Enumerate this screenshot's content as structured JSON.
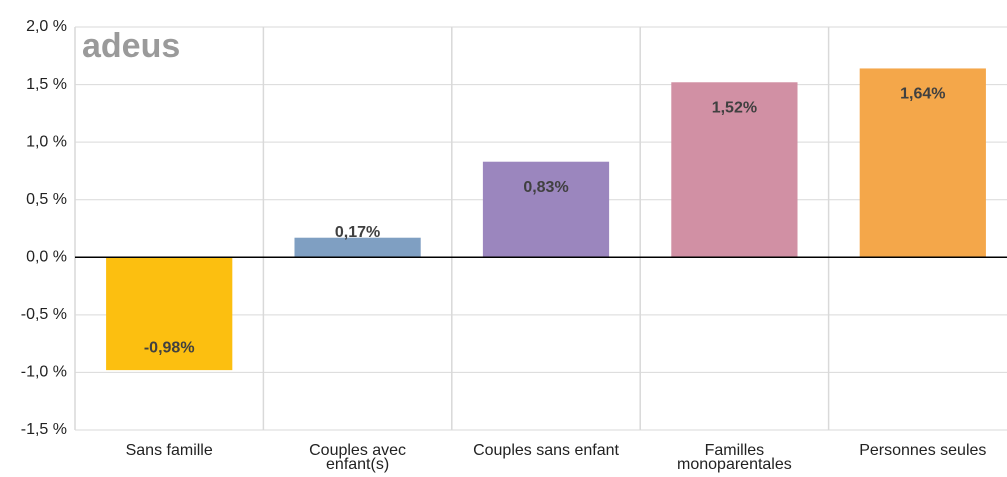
{
  "chart_data": {
    "type": "bar",
    "logo": "adeus",
    "categories": [
      "Sans famille",
      "Couples avec enfant(s)",
      "Couples sans enfant",
      "Familles monoparentales",
      "Personnes seules"
    ],
    "values": [
      -0.98,
      0.17,
      0.83,
      1.52,
      1.64
    ],
    "value_labels": [
      "-0,98%",
      "0,17%",
      "0,83%",
      "1,52%",
      "1,64%"
    ],
    "colors": [
      "#fcbf10",
      "#7f9fc2",
      "#9b86be",
      "#d190a4",
      "#f4a74a"
    ],
    "ylim": [
      -1.5,
      2.0
    ],
    "yticks": [
      {
        "value": -1.5,
        "label": "-1,5 %"
      },
      {
        "value": -1.0,
        "label": "-1,0 %"
      },
      {
        "value": -0.5,
        "label": "-0,5 %"
      },
      {
        "value": 0,
        "label": "0,0 %"
      },
      {
        "value": 0.5,
        "label": "0,5 %"
      },
      {
        "value": 1.0,
        "label": "1,0 %"
      },
      {
        "value": 1.5,
        "label": "1,5 %"
      },
      {
        "value": 2.0,
        "label": "2,0 %"
      }
    ],
    "grid": true
  }
}
